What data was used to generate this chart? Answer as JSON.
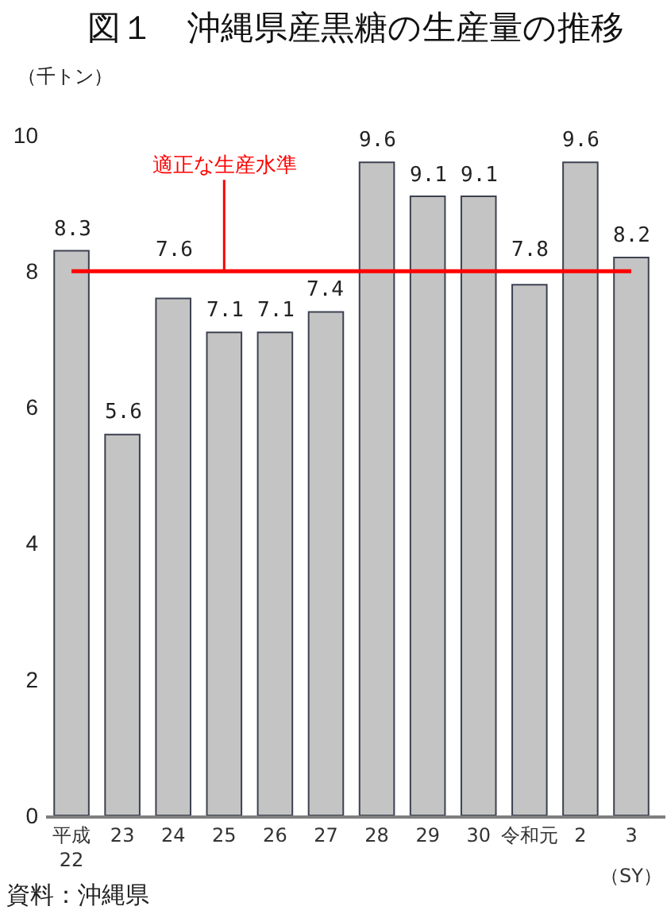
{
  "chart_data": {
    "type": "bar",
    "title": "図１　沖縄県産黒糖の生産量の推移",
    "ylabel": "（千トン）",
    "xlabel": "（SY）",
    "categories": [
      "平成\n22",
      "23",
      "24",
      "25",
      "26",
      "27",
      "28",
      "29",
      "30",
      "令和元",
      "2",
      "3"
    ],
    "values": [
      8.3,
      5.6,
      7.6,
      7.1,
      7.1,
      7.4,
      9.6,
      9.1,
      9.1,
      7.8,
      9.6,
      8.2
    ],
    "color": "#c4c4c4",
    "ylim": [
      0,
      10
    ],
    "yticks": [
      0,
      2,
      4,
      6,
      8,
      10
    ],
    "data_labels": true,
    "ref_lines": [
      {
        "axis": "y",
        "value": 8,
        "label": "適正な生産水準",
        "color": "#ff0000"
      }
    ],
    "annotations": [
      "資料：沖縄県"
    ]
  }
}
